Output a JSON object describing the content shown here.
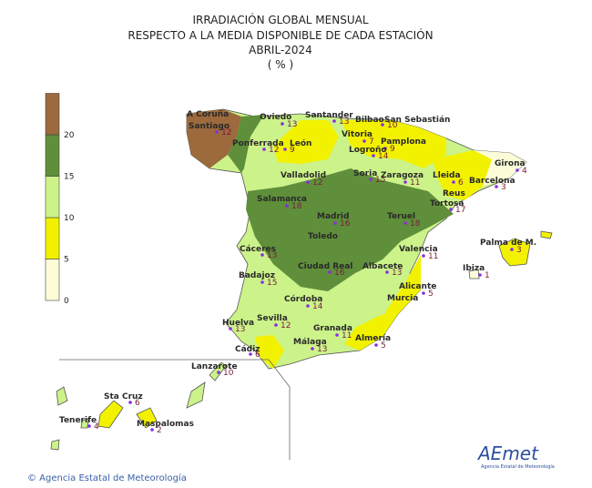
{
  "title": [
    "IRRADIACIÓN GLOBAL MENSUAL",
    "RESPECTO A LA MEDIA DISPONIBLE DE CADA ESTACIÓN",
    "ABRIL-2024",
    "( % )"
  ],
  "legend": {
    "ticks": [
      0,
      5,
      10,
      15,
      20
    ],
    "colors": [
      "#fcfcd8",
      "#f2f200",
      "#ccf28a",
      "#5f8f3a",
      "#9c6a3c"
    ]
  },
  "stations": [
    {
      "name": "A Coruña"
    },
    {
      "name": "Santiago",
      "value": "12"
    },
    {
      "name": "Oviedo",
      "value": "13"
    },
    {
      "name": "Santander",
      "value": "13"
    },
    {
      "name": "Bilbao",
      "value": "10"
    },
    {
      "name": "San Sebastián"
    },
    {
      "name": "Vitoria",
      "value": "7"
    },
    {
      "name": "Pamplona",
      "value": "9"
    },
    {
      "name": "Ponferrada",
      "value": "12"
    },
    {
      "name": "León",
      "value": "9"
    },
    {
      "name": "Logroño",
      "value": "14"
    },
    {
      "name": "Girona",
      "value": "4"
    },
    {
      "name": "Valladolid",
      "value": "12"
    },
    {
      "name": "Soria",
      "value": "15"
    },
    {
      "name": "Zaragoza",
      "value": "11"
    },
    {
      "name": "Lleida",
      "value": "6"
    },
    {
      "name": "Barcelona",
      "value": "3"
    },
    {
      "name": "Reus"
    },
    {
      "name": "Tortosa",
      "value": "17"
    },
    {
      "name": "Salamanca",
      "value": "18"
    },
    {
      "name": "Madrid",
      "value": "16"
    },
    {
      "name": "Teruel",
      "value": "18"
    },
    {
      "name": "Toledo"
    },
    {
      "name": "Palma de M.",
      "value": "3"
    },
    {
      "name": "Cáceres",
      "value": "13"
    },
    {
      "name": "Valencia",
      "value": "11"
    },
    {
      "name": "Ibiza",
      "value": "1"
    },
    {
      "name": "Ciudad Real",
      "value": "16"
    },
    {
      "name": "Albacete",
      "value": "13"
    },
    {
      "name": "Badajoz",
      "value": "15"
    },
    {
      "name": "Alicante",
      "value": "5"
    },
    {
      "name": "Córdoba",
      "value": "14"
    },
    {
      "name": "Murcia"
    },
    {
      "name": "Sevilla",
      "value": "12"
    },
    {
      "name": "Huelva",
      "value": "13"
    },
    {
      "name": "Granada",
      "value": "11"
    },
    {
      "name": "Almería",
      "value": "5"
    },
    {
      "name": "Málaga",
      "value": "13"
    },
    {
      "name": "Cádiz",
      "value": "6"
    },
    {
      "name": "Lanzarote",
      "value": "10"
    },
    {
      "name": "Sta Cruz",
      "value": "6"
    },
    {
      "name": "Tenerife",
      "value": "4"
    },
    {
      "name": "Maspalomas",
      "value": "2"
    }
  ],
  "footer": {
    "copyright": "© Agencia Estatal de Meteorología",
    "logo": "AEmet",
    "logo_caption": "Agencia Estatal de Meteorología"
  }
}
